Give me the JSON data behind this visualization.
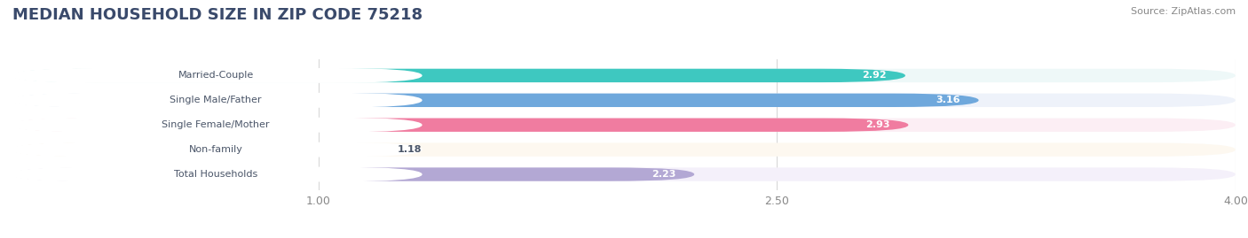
{
  "title": "MEDIAN HOUSEHOLD SIZE IN ZIP CODE 75218",
  "source": "Source: ZipAtlas.com",
  "categories": [
    "Married-Couple",
    "Single Male/Father",
    "Single Female/Mother",
    "Non-family",
    "Total Households"
  ],
  "values": [
    2.92,
    3.16,
    2.93,
    1.18,
    2.23
  ],
  "bar_colors": [
    "#3ec8c0",
    "#6fa8dc",
    "#f07ca0",
    "#f5c98a",
    "#b3a8d4"
  ],
  "bar_bg_colors": [
    "#eef8f8",
    "#eef2fa",
    "#fceef4",
    "#fdf8f0",
    "#f4f0fa"
  ],
  "xlim": [
    0,
    4.0
  ],
  "xticks": [
    1.0,
    2.5,
    4.0
  ],
  "value_color": "white",
  "label_color": "#4a5568",
  "title_color": "#3a4a6b",
  "title_fontsize": 13,
  "bar_height": 0.55,
  "background_color": "#ffffff"
}
